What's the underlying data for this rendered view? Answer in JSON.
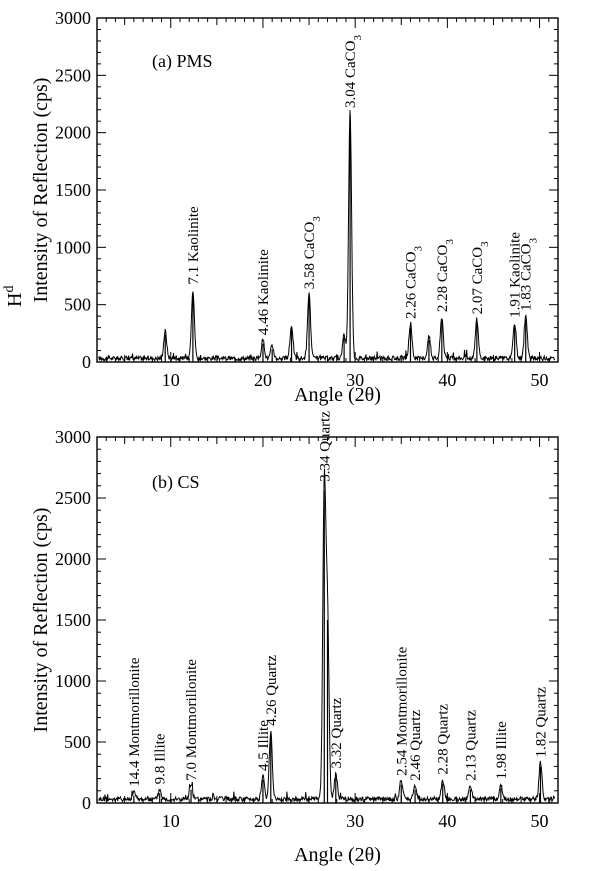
{
  "chart_data": [
    {
      "type": "line",
      "panel_label": "(a) PMS",
      "xlabel": "Angle (2θ)",
      "ylabel": "Intensity of Reflection (cps)",
      "stray_text": "H",
      "stray_sup": "d",
      "xlim": [
        2,
        52
      ],
      "ylim": [
        0,
        3000
      ],
      "x_ticks": [
        10,
        20,
        30,
        40,
        50
      ],
      "y_ticks": [
        0,
        500,
        1000,
        1500,
        2000,
        2500,
        3000
      ],
      "peaks": [
        {
          "x": 9.4,
          "y": 240
        },
        {
          "x": 12.4,
          "y": 600
        },
        {
          "x": 20.0,
          "y": 160
        },
        {
          "x": 21.0,
          "y": 110
        },
        {
          "x": 23.1,
          "y": 290
        },
        {
          "x": 25.0,
          "y": 560
        },
        {
          "x": 28.8,
          "y": 210
        },
        {
          "x": 29.45,
          "y": 2160
        },
        {
          "x": 36.0,
          "y": 300
        },
        {
          "x": 38.0,
          "y": 190
        },
        {
          "x": 39.4,
          "y": 360
        },
        {
          "x": 43.2,
          "y": 340
        },
        {
          "x": 47.3,
          "y": 310
        },
        {
          "x": 48.5,
          "y": 370
        }
      ],
      "annotations": [
        {
          "x": 12.4,
          "y": 640,
          "main": "7.1 Kaolinite",
          "sub": ""
        },
        {
          "x": 20.0,
          "y": 200,
          "main": "4.46 Kaolinite",
          "sub": ""
        },
        {
          "x": 25.0,
          "y": 600,
          "main": "3.58 CaCO",
          "sub": "3"
        },
        {
          "x": 29.45,
          "y": 2180,
          "main": "3.04 CaCO",
          "sub": "3"
        },
        {
          "x": 36.0,
          "y": 340,
          "main": "2.26 CaCO",
          "sub": "3"
        },
        {
          "x": 39.4,
          "y": 400,
          "main": "2.28 CaCO",
          "sub": "3"
        },
        {
          "x": 43.2,
          "y": 380,
          "main": "2.07 CaCO",
          "sub": "3"
        },
        {
          "x": 47.3,
          "y": 350,
          "main": "1.91 Kaolinite",
          "sub": ""
        },
        {
          "x": 48.5,
          "y": 410,
          "main": "1.83 CaCO",
          "sub": "3"
        }
      ]
    },
    {
      "type": "line",
      "panel_label": "(b) CS",
      "xlabel": "Angle (2θ)",
      "ylabel": "Intensity of Reflection (cps)",
      "xlim": [
        2,
        52
      ],
      "ylim": [
        0,
        3000
      ],
      "x_ticks": [
        10,
        20,
        30,
        40,
        50
      ],
      "y_ticks": [
        0,
        500,
        1000,
        1500,
        2000,
        2500,
        3000
      ],
      "peaks": [
        {
          "x": 6.0,
          "y": 60
        },
        {
          "x": 8.8,
          "y": 80
        },
        {
          "x": 12.2,
          "y": 110
        },
        {
          "x": 20.0,
          "y": 190
        },
        {
          "x": 20.85,
          "y": 560
        },
        {
          "x": 26.65,
          "y": 2560
        },
        {
          "x": 27.0,
          "y": 1500
        },
        {
          "x": 27.9,
          "y": 210
        },
        {
          "x": 35.0,
          "y": 150
        },
        {
          "x": 36.5,
          "y": 110
        },
        {
          "x": 39.5,
          "y": 160
        },
        {
          "x": 42.5,
          "y": 110
        },
        {
          "x": 45.8,
          "y": 120
        },
        {
          "x": 50.1,
          "y": 300
        }
      ],
      "annotations": [
        {
          "x": 6.0,
          "y": 100,
          "main": "14.4 Montmorillonite",
          "sub": ""
        },
        {
          "x": 8.8,
          "y": 120,
          "main": "9.8 Illite",
          "sub": ""
        },
        {
          "x": 12.2,
          "y": 150,
          "main": "7.0 Montmorillonite",
          "sub": ""
        },
        {
          "x": 20.0,
          "y": 230,
          "main": "4.5 Illite",
          "sub": ""
        },
        {
          "x": 20.85,
          "y": 600,
          "main": "4.26 Quartz",
          "sub": ""
        },
        {
          "x": 26.65,
          "y": 2600,
          "main": "3.34 Quartz",
          "sub": ""
        },
        {
          "x": 27.9,
          "y": 250,
          "main": "3.32 Quartz",
          "sub": ""
        },
        {
          "x": 35.0,
          "y": 190,
          "main": "2.54 Montmorillonite",
          "sub": ""
        },
        {
          "x": 36.5,
          "y": 150,
          "main": "2.46 Quartz",
          "sub": ""
        },
        {
          "x": 39.5,
          "y": 200,
          "main": "2.28 Quartz",
          "sub": ""
        },
        {
          "x": 42.5,
          "y": 150,
          "main": "2.13 Quartz",
          "sub": ""
        },
        {
          "x": 45.8,
          "y": 160,
          "main": "1.98 Illite",
          "sub": ""
        },
        {
          "x": 50.1,
          "y": 340,
          "main": "1.82 Quartz",
          "sub": ""
        }
      ]
    }
  ]
}
